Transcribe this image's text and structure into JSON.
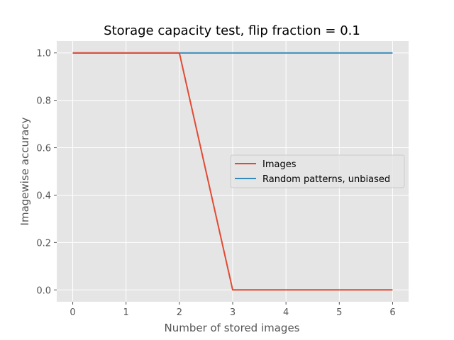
{
  "chart_data": {
    "type": "line",
    "title": "Storage capacity test, flip fraction = 0.1",
    "xlabel": "Number of stored images",
    "ylabel": "Imagewise accuracy",
    "xlim": [
      -0.3,
      6.3
    ],
    "ylim": [
      -0.05,
      1.05
    ],
    "x_ticks": [
      0,
      1,
      2,
      3,
      4,
      5,
      6
    ],
    "y_ticks": [
      0.0,
      0.2,
      0.4,
      0.6,
      0.8,
      1.0
    ],
    "x_tick_labels": [
      "0",
      "1",
      "2",
      "3",
      "4",
      "5",
      "6"
    ],
    "y_tick_labels": [
      "0.0",
      "0.2",
      "0.4",
      "0.6",
      "0.8",
      "1.0"
    ],
    "grid": true,
    "legend_position": "center-right",
    "x": [
      0,
      2,
      3,
      6
    ],
    "series": [
      {
        "name": "Images",
        "color": "#E24A33",
        "values": [
          1.0,
          1.0,
          0.0,
          0.0
        ]
      },
      {
        "name": "Random patterns, unbiased",
        "color": "#348ABD",
        "values": [
          1.0,
          1.0,
          1.0,
          1.0
        ]
      }
    ],
    "colors": {
      "plot_background": "#E5E5E5",
      "grid": "#FFFFFF",
      "legend_background": "#E5E5E5",
      "legend_border": "#CCCCCC"
    }
  }
}
